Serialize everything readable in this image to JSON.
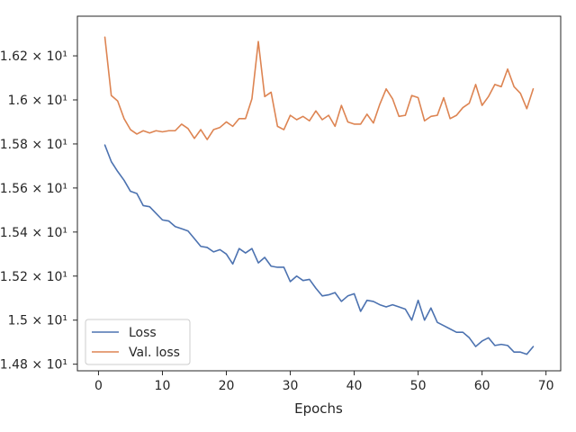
{
  "chart_data": {
    "type": "line",
    "title": "",
    "xlabel": "Epochs",
    "ylabel": "",
    "xlim": [
      -3.3,
      72.3
    ],
    "ylim": [
      14.77,
      16.38
    ],
    "xticks": [
      0,
      10,
      20,
      30,
      40,
      50,
      60,
      70
    ],
    "xtick_labels": [
      "0",
      "10",
      "20",
      "30",
      "40",
      "50",
      "60",
      "70"
    ],
    "yticks": [
      14.8,
      15.0,
      15.2,
      15.4,
      15.6,
      15.8,
      16.0,
      16.2
    ],
    "ytick_labels": [
      "1.48 × 10¹",
      "1.5 × 10¹",
      "1.52 × 10¹",
      "1.54 × 10¹",
      "1.56 × 10¹",
      "1.58 × 10¹",
      "1.6 × 10¹",
      "1.62 × 10¹"
    ],
    "grid": false,
    "legend_position": "lower-left",
    "x": [
      1,
      2,
      3,
      4,
      5,
      6,
      7,
      8,
      9,
      10,
      11,
      12,
      13,
      14,
      15,
      16,
      17,
      18,
      19,
      20,
      21,
      22,
      23,
      24,
      25,
      26,
      27,
      28,
      29,
      30,
      31,
      32,
      33,
      34,
      35,
      36,
      37,
      38,
      39,
      40,
      41,
      42,
      43,
      44,
      45,
      46,
      47,
      48,
      49,
      50,
      51,
      52,
      53,
      54,
      55,
      56,
      57,
      58,
      59,
      60,
      61,
      62,
      63,
      64,
      65,
      66,
      67,
      68
    ],
    "series": [
      {
        "name": "Loss",
        "color": "#4c72b0",
        "values": [
          15.795,
          15.72,
          15.675,
          15.635,
          15.585,
          15.575,
          15.52,
          15.515,
          15.485,
          15.455,
          15.45,
          15.425,
          15.415,
          15.405,
          15.37,
          15.335,
          15.33,
          15.31,
          15.32,
          15.3,
          15.255,
          15.325,
          15.305,
          15.325,
          15.26,
          15.285,
          15.245,
          15.24,
          15.24,
          15.175,
          15.2,
          15.18,
          15.185,
          15.145,
          15.11,
          15.115,
          15.125,
          15.085,
          15.11,
          15.12,
          15.04,
          15.09,
          15.085,
          15.07,
          15.06,
          15.07,
          15.06,
          15.05,
          15.0,
          15.09,
          15.0,
          15.055,
          14.99,
          14.975,
          14.96,
          14.945,
          14.945,
          14.92,
          14.88,
          14.905,
          14.92,
          14.885,
          14.89,
          14.885,
          14.855,
          14.855,
          14.845,
          14.88
        ]
      },
      {
        "name": "Val. loss",
        "color": "#dd8452",
        "values": [
          16.285,
          16.02,
          15.995,
          15.915,
          15.865,
          15.845,
          15.86,
          15.85,
          15.86,
          15.855,
          15.86,
          15.86,
          15.89,
          15.87,
          15.825,
          15.865,
          15.82,
          15.865,
          15.875,
          15.9,
          15.88,
          15.915,
          15.915,
          16.005,
          16.265,
          16.015,
          16.035,
          15.88,
          15.865,
          15.93,
          15.91,
          15.925,
          15.905,
          15.95,
          15.91,
          15.93,
          15.88,
          15.975,
          15.9,
          15.89,
          15.89,
          15.935,
          15.895,
          15.98,
          16.05,
          16.005,
          15.925,
          15.93,
          16.02,
          16.01,
          15.905,
          15.925,
          15.93,
          16.01,
          15.915,
          15.93,
          15.965,
          15.985,
          16.07,
          15.975,
          16.015,
          16.07,
          16.06,
          16.14,
          16.06,
          16.03,
          15.96,
          16.05
        ]
      }
    ]
  }
}
